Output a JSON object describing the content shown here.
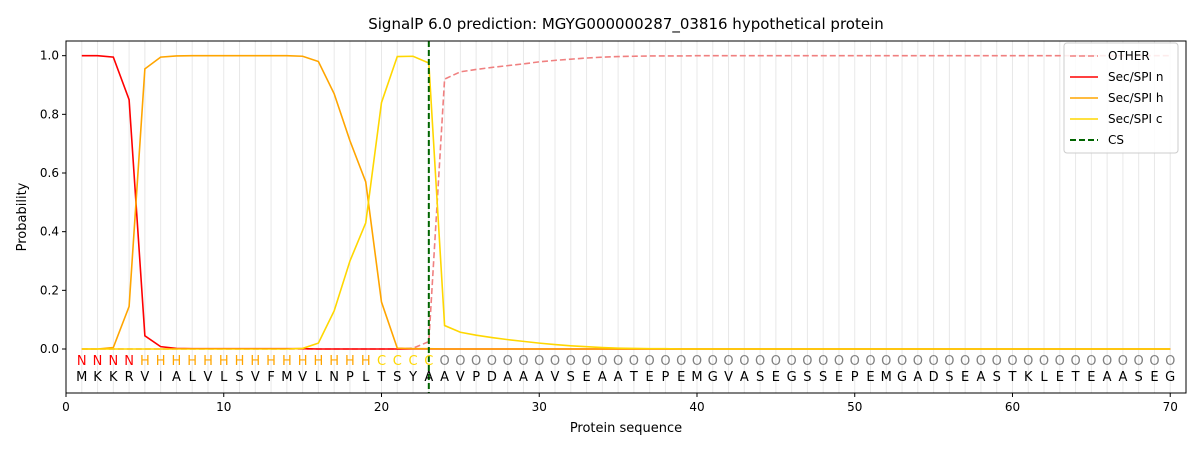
{
  "chart_data": {
    "type": "line",
    "title": "SignalP 6.0 prediction: MGYG000000287_03816 hypothetical protein",
    "xlabel": "Protein sequence",
    "ylabel": "Probability",
    "xlim": [
      0,
      71
    ],
    "ylim": [
      -0.15,
      1.05
    ],
    "xticks": [
      "0",
      "10",
      "20",
      "30",
      "40",
      "50",
      "60",
      "70"
    ],
    "yticks": [
      "0.0",
      "0.2",
      "0.4",
      "0.6",
      "0.8",
      "1.0"
    ],
    "xtick_values": [
      0,
      10,
      20,
      30,
      40,
      50,
      60,
      70
    ],
    "ytick_values": [
      0,
      0.2,
      0.4,
      0.6,
      0.8,
      1.0
    ],
    "legend_position": "top-right",
    "sequence": [
      "M",
      "K",
      "K",
      "R",
      "V",
      "I",
      "A",
      "L",
      "V",
      "L",
      "S",
      "V",
      "F",
      "M",
      "V",
      "L",
      "N",
      "P",
      "L",
      "T",
      "S",
      "Y",
      "A",
      "A",
      "V",
      "P",
      "D",
      "A",
      "A",
      "A",
      "V",
      "S",
      "E",
      "A",
      "A",
      "T",
      "E",
      "P",
      "E",
      "M",
      "G",
      "V",
      "A",
      "S",
      "E",
      "G",
      "S",
      "S",
      "E",
      "P",
      "E",
      "M",
      "G",
      "A",
      "D",
      "S",
      "E",
      "A",
      "S",
      "T",
      "K",
      "L",
      "E",
      "T",
      "E",
      "A",
      "A",
      "S",
      "E",
      "G"
    ],
    "labels": [
      "N",
      "N",
      "N",
      "N",
      "H",
      "H",
      "H",
      "H",
      "H",
      "H",
      "H",
      "H",
      "H",
      "H",
      "H",
      "H",
      "H",
      "H",
      "H",
      "C",
      "C",
      "C",
      "C",
      "O",
      "O",
      "O",
      "O",
      "O",
      "O",
      "O",
      "O",
      "O",
      "O",
      "O",
      "O",
      "O",
      "O",
      "O",
      "O",
      "O",
      "O",
      "O",
      "O",
      "O",
      "O",
      "O",
      "O",
      "O",
      "O",
      "O",
      "O",
      "O",
      "O",
      "O",
      "O",
      "O",
      "O",
      "O",
      "O",
      "O",
      "O",
      "O",
      "O",
      "O",
      "O",
      "O",
      "O",
      "O",
      "O",
      "O"
    ],
    "label_colors": {
      "N": "#ff0000",
      "H": "#ffa500",
      "C": "#ffd700",
      "O": "#808080"
    },
    "cleavage_site": 23,
    "series": [
      {
        "name": "OTHER",
        "color": "#f08080",
        "dash": true,
        "values": [
          0,
          0,
          0,
          0,
          0,
          0,
          0,
          0,
          0,
          0,
          0,
          0,
          0,
          0,
          0,
          0,
          0,
          0,
          0,
          0,
          0,
          0.003,
          0.025,
          0.92,
          0.945,
          0.953,
          0.96,
          0.966,
          0.972,
          0.979,
          0.984,
          0.988,
          0.992,
          0.995,
          0.997,
          0.998,
          0.999,
          0.999,
          0.999,
          1,
          1,
          1,
          1,
          1,
          1,
          1,
          1,
          1,
          1,
          1,
          1,
          1,
          1,
          1,
          1,
          1,
          1,
          1,
          1,
          1,
          1,
          1,
          1,
          1,
          1,
          1,
          1,
          1,
          1,
          1
        ]
      },
      {
        "name": "Sec/SPI n",
        "color": "#ff0000",
        "dash": false,
        "values": [
          1.0,
          1.0,
          0.995,
          0.85,
          0.045,
          0.008,
          0.002,
          0.001,
          0.001,
          0.001,
          0.001,
          0.001,
          0.001,
          0.001,
          0.001,
          0,
          0,
          0,
          0,
          0,
          0,
          0,
          0,
          0,
          0,
          0,
          0,
          0,
          0,
          0,
          0,
          0,
          0,
          0,
          0,
          0,
          0,
          0,
          0,
          0,
          0,
          0,
          0,
          0,
          0,
          0,
          0,
          0,
          0,
          0,
          0,
          0,
          0,
          0,
          0,
          0,
          0,
          0,
          0,
          0,
          0,
          0,
          0,
          0,
          0,
          0,
          0,
          0,
          0,
          0
        ]
      },
      {
        "name": "Sec/SPI h",
        "color": "#ffa500",
        "dash": false,
        "values": [
          0,
          0,
          0.005,
          0.145,
          0.955,
          0.995,
          0.999,
          1.0,
          1.0,
          1.0,
          1.0,
          1.0,
          1.0,
          1.0,
          0.998,
          0.98,
          0.87,
          0.71,
          0.57,
          0.16,
          0.003,
          0.001,
          0.001,
          0,
          0,
          0,
          0,
          0,
          0,
          0,
          0,
          0,
          0,
          0,
          0,
          0,
          0,
          0,
          0,
          0,
          0,
          0,
          0,
          0,
          0,
          0,
          0,
          0,
          0,
          0,
          0,
          0,
          0,
          0,
          0,
          0,
          0,
          0,
          0,
          0,
          0,
          0,
          0,
          0,
          0,
          0,
          0,
          0,
          0,
          0
        ]
      },
      {
        "name": "Sec/SPI c",
        "color": "#ffd700",
        "dash": false,
        "values": [
          0,
          0,
          0,
          0,
          0,
          0,
          0,
          0,
          0,
          0,
          0,
          0,
          0,
          0,
          0.002,
          0.02,
          0.13,
          0.3,
          0.43,
          0.84,
          0.997,
          0.998,
          0.975,
          0.08,
          0.057,
          0.047,
          0.039,
          0.032,
          0.026,
          0.02,
          0.015,
          0.011,
          0.008,
          0.005,
          0.003,
          0.002,
          0.001,
          0.001,
          0,
          0,
          0,
          0,
          0,
          0,
          0,
          0,
          0,
          0,
          0,
          0,
          0,
          0,
          0,
          0,
          0,
          0,
          0,
          0,
          0,
          0,
          0,
          0,
          0,
          0,
          0,
          0,
          0,
          0,
          0,
          0
        ]
      },
      {
        "name": "CS",
        "color": "#006400",
        "dash": true,
        "vertical": true
      }
    ]
  }
}
